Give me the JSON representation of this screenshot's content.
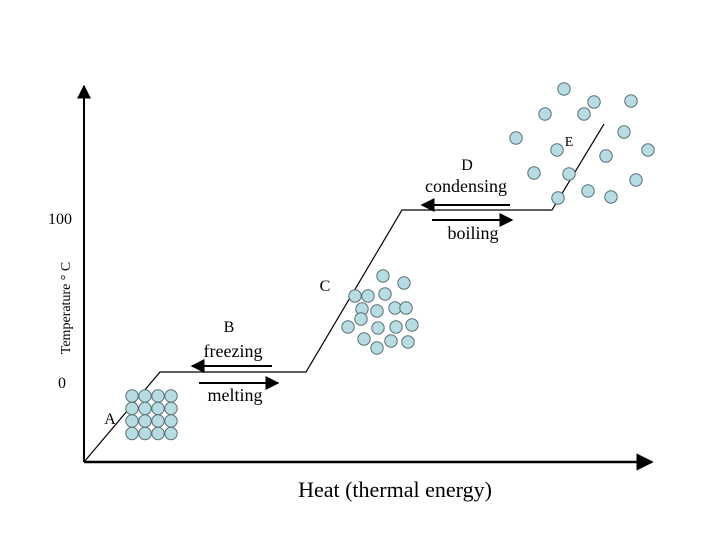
{
  "diagram": {
    "axis": {
      "y_label": "Temperature ° C",
      "x_label": "Heat (thermal energy)",
      "tick_100": "100",
      "tick_0": "0"
    },
    "labels": {
      "a": "A",
      "b": "B",
      "c": "C",
      "d": "D",
      "e": "E",
      "freezing": "freezing",
      "melting": "melting",
      "condensing": "condensing",
      "boiling": "boiling"
    },
    "colors": {
      "particle_fill": "#b7dde3",
      "particle_stroke": "#5a6f78",
      "line": "#000000"
    }
  }
}
